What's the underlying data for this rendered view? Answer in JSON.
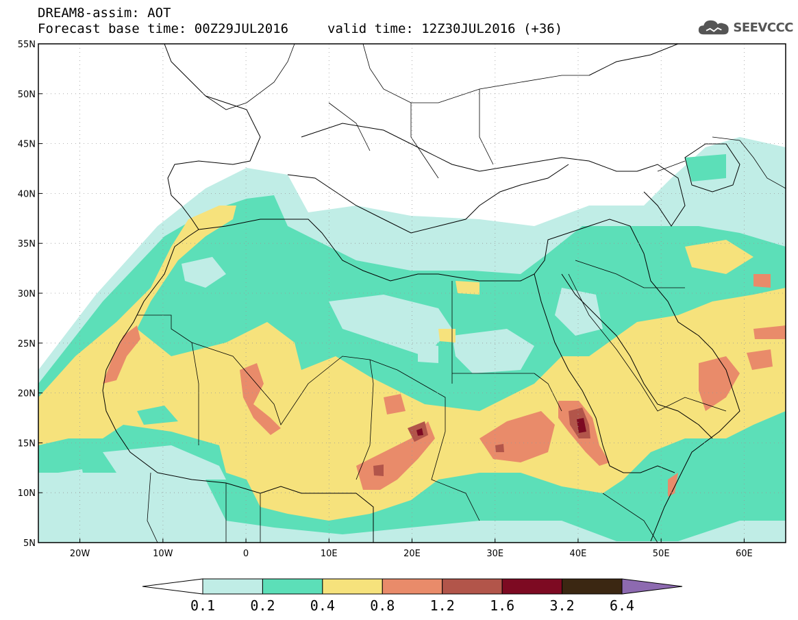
{
  "header": {
    "title": "DREAM8-assim: AOT",
    "forecast_base": "Forecast base time: 00Z29JUL2016",
    "valid_time": "valid time: 12Z30JUL2016 (+36)"
  },
  "logo": {
    "text": "SEEVCCC",
    "icon": "cloud-icon"
  },
  "map": {
    "lat_labels": [
      "55N",
      "50N",
      "45N",
      "40N",
      "35N",
      "30N",
      "25N",
      "20N",
      "15N",
      "10N",
      "5N"
    ],
    "lat_values": [
      55,
      50,
      45,
      40,
      35,
      30,
      25,
      20,
      15,
      10,
      5
    ],
    "lon_labels": [
      "20W",
      "10W",
      "0",
      "10E",
      "20E",
      "30E",
      "40E",
      "50E",
      "60E"
    ],
    "lon_values": [
      -20,
      -10,
      0,
      10,
      20,
      30,
      40,
      50,
      60
    ],
    "lon_range": [
      -25,
      65
    ],
    "lat_range": [
      5,
      55
    ]
  },
  "colorbar": {
    "bounds": [
      "0.1",
      "0.2",
      "0.4",
      "0.8",
      "1.2",
      "1.6",
      "3.2",
      "6.4"
    ],
    "colors": [
      "#ffffff",
      "#c0ede6",
      "#5cdfb8",
      "#f6e27c",
      "#e98b6a",
      "#b2554a",
      "#7d0a22",
      "#3b2712",
      "#8d6ab0"
    ]
  }
}
